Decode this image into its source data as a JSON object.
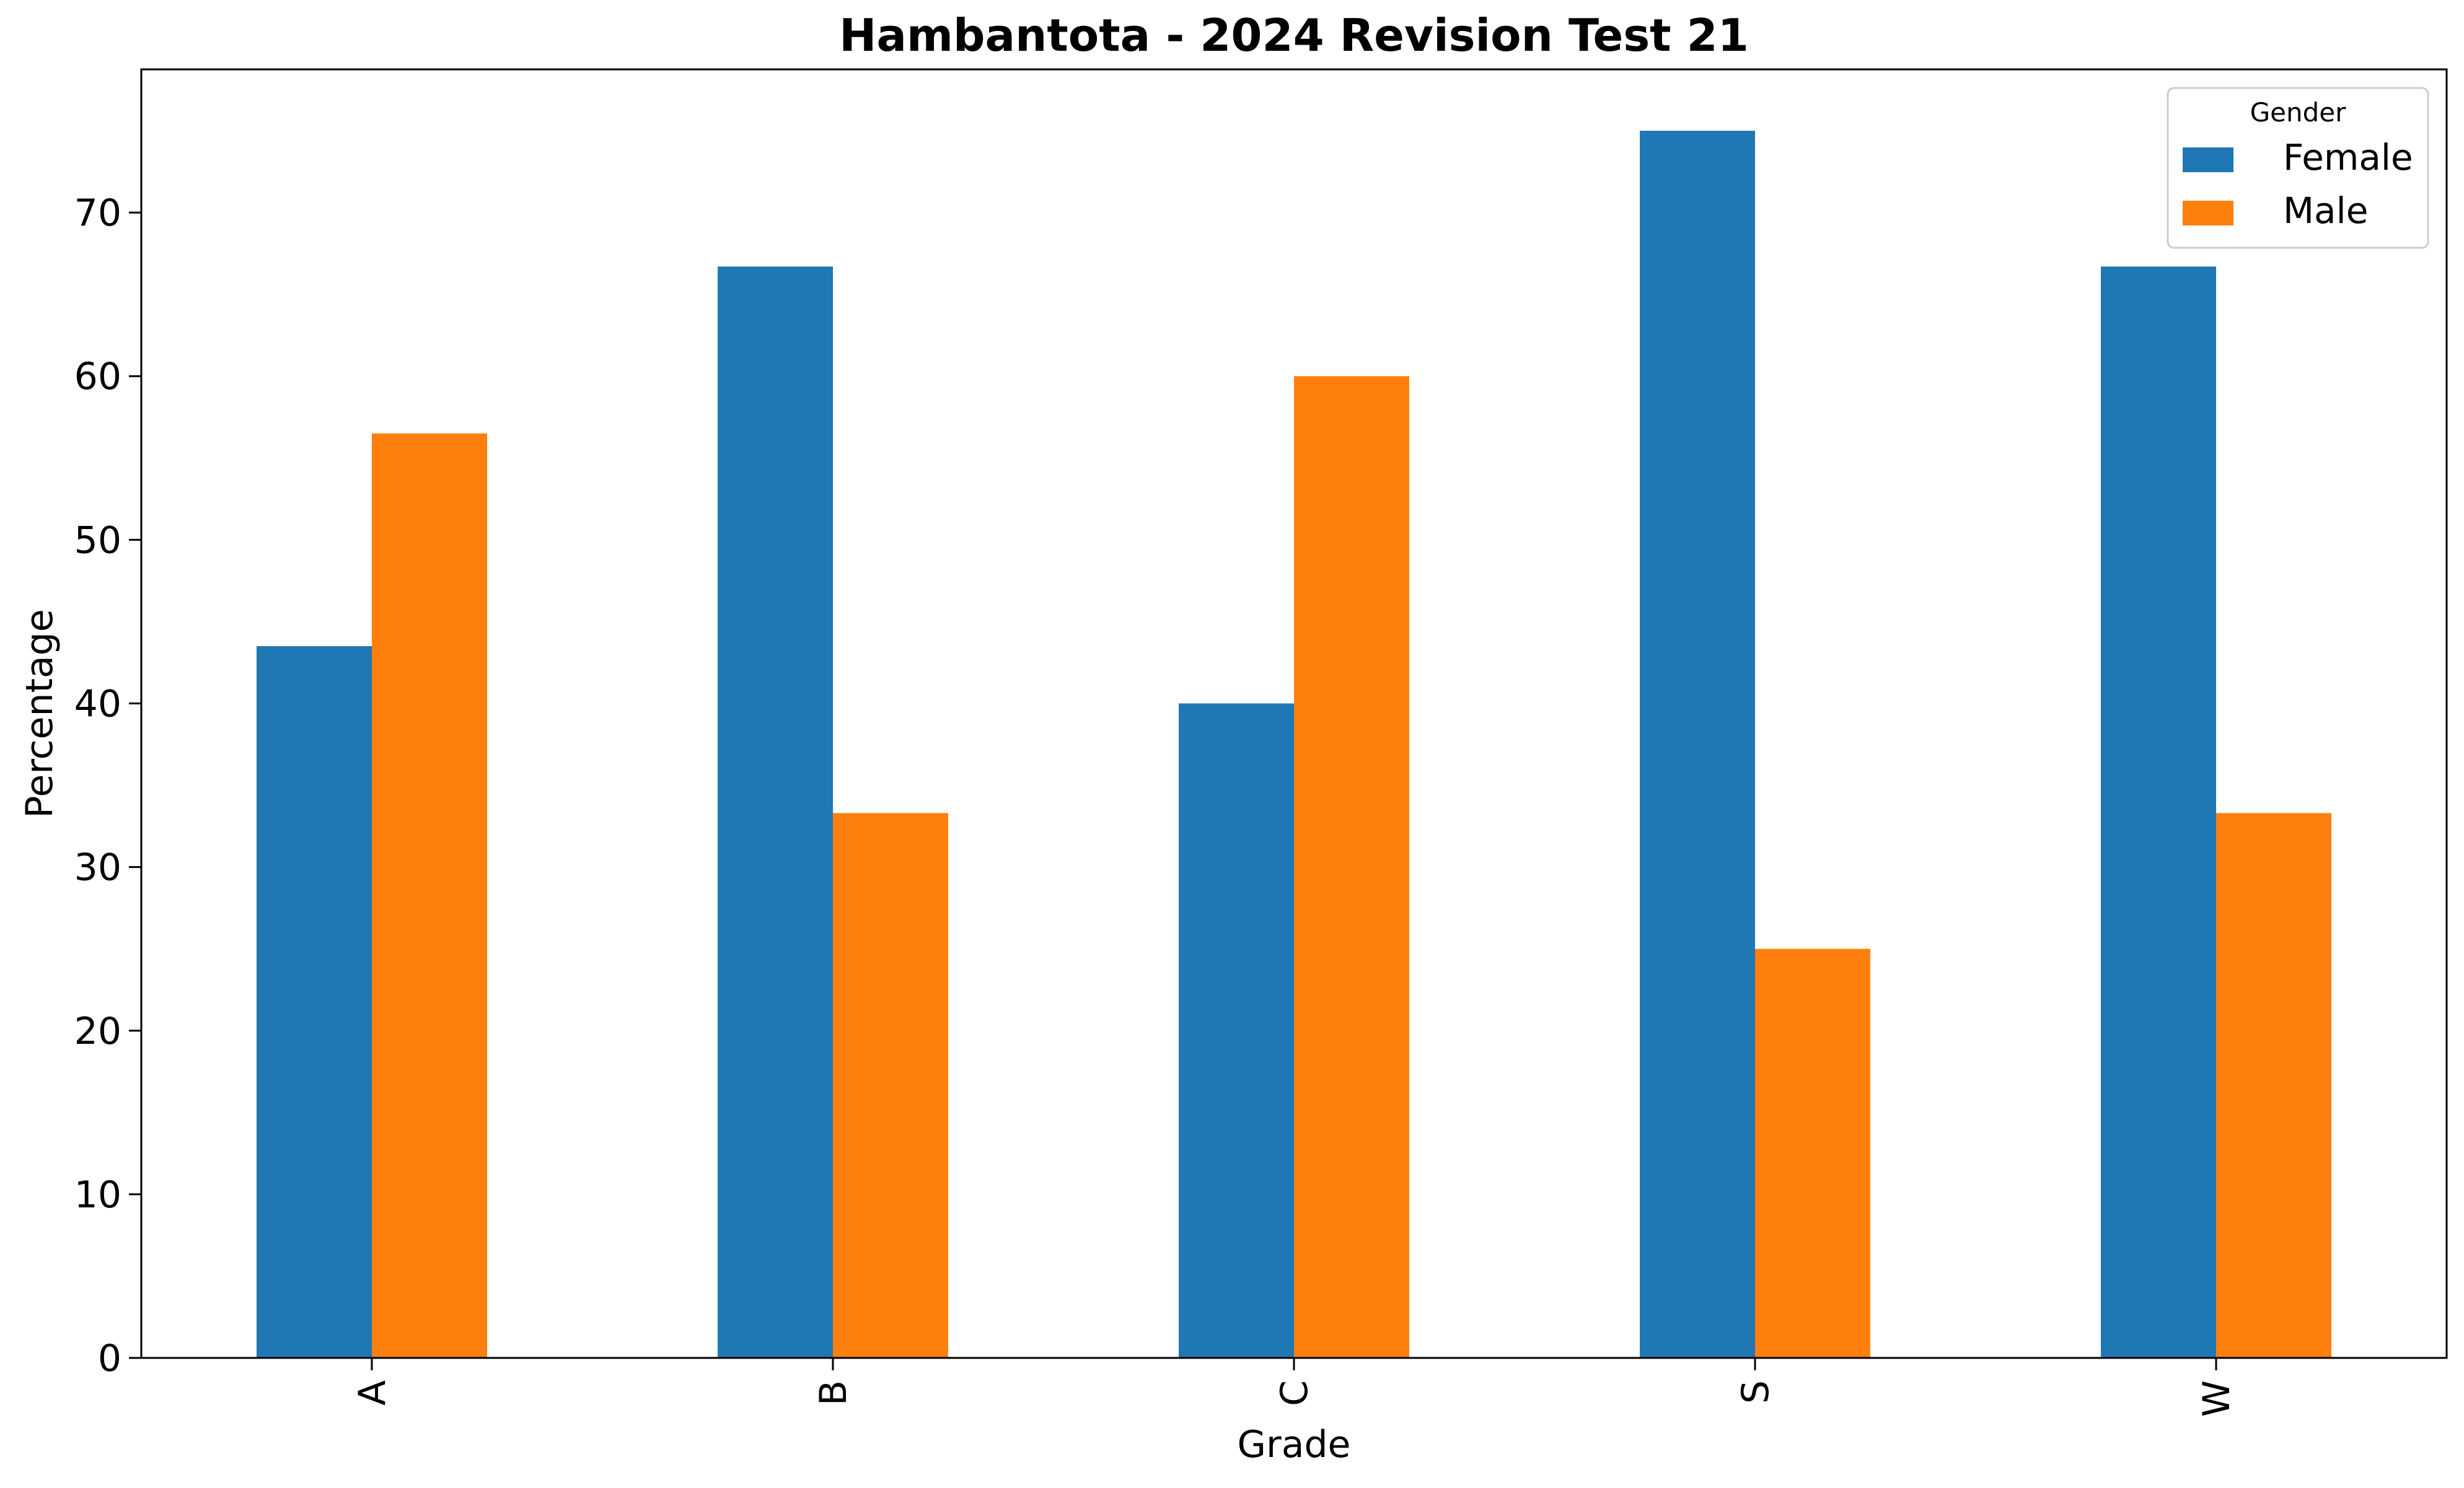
{
  "chart_data": {
    "type": "bar",
    "title": "Hambantota - 2024 Revision Test 21",
    "xlabel": "Grade",
    "ylabel": "Percentage",
    "categories": [
      "A",
      "B",
      "C",
      "S",
      "W"
    ],
    "series": [
      {
        "name": "Female",
        "color": "#1f77b4",
        "values": [
          43.5,
          66.7,
          40.0,
          75.0,
          66.7
        ]
      },
      {
        "name": "Male",
        "color": "#ff7f0e",
        "values": [
          56.5,
          33.3,
          60.0,
          25.0,
          33.3
        ]
      }
    ],
    "ylim": [
      0,
      78.75
    ],
    "yticks": [
      0,
      10,
      20,
      30,
      40,
      50,
      60,
      70
    ],
    "grid": false,
    "legend": {
      "title": "Gender",
      "placement": "top-right"
    }
  }
}
